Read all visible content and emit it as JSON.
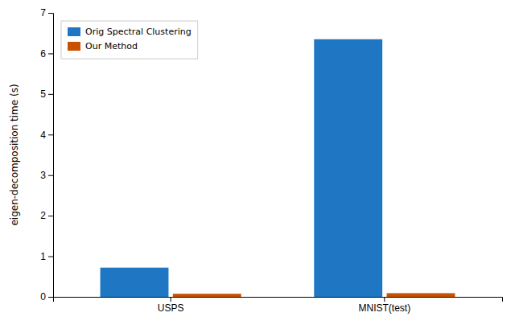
{
  "chart_data": {
    "type": "bar",
    "categories": [
      "USPS",
      "MNIST(test)"
    ],
    "series": [
      {
        "name": "Orig Spectral Clustering",
        "color": "#1f77c4",
        "values": [
          0.72,
          6.35
        ]
      },
      {
        "name": "Our Method",
        "color": "#c85000",
        "values": [
          0.075,
          0.09
        ]
      }
    ],
    "ylabel": "eigen-decomposition time (s)",
    "ylim": [
      0,
      7
    ],
    "yticks": [
      0,
      1,
      2,
      3,
      4,
      5,
      6,
      7
    ],
    "legend": "upper left",
    "grid": false
  }
}
